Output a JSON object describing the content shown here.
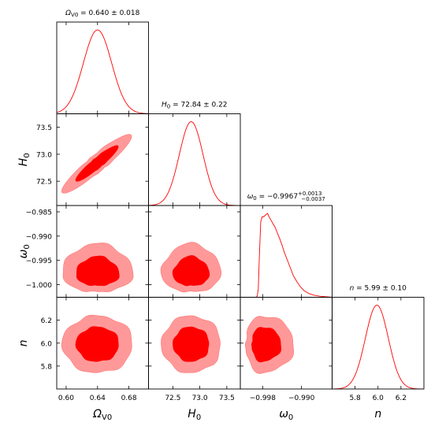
{
  "chart_data": {
    "type": "corner-plot",
    "parameters": [
      {
        "key": "omega_v0",
        "symbol": "Ω",
        "sub": "V0",
        "range": [
          0.588,
          0.705
        ],
        "ticks": [
          0.6,
          0.64,
          0.68
        ],
        "tick_labels": [
          "0.60",
          "0.64",
          "0.68"
        ],
        "mean": 0.64,
        "sigma": 0.018,
        "title": "= 0.640 ± 0.018"
      },
      {
        "key": "h0",
        "symbol": "H",
        "sub": "0",
        "range": [
          72.05,
          73.75
        ],
        "ticks": [
          72.5,
          73.0,
          73.5
        ],
        "tick_labels": [
          "72.5",
          "73.0",
          "73.5"
        ],
        "mean": 72.84,
        "sigma": 0.22,
        "title": "= 72.84 ± 0.22"
      },
      {
        "key": "w0",
        "symbol": "ω",
        "sub": "0",
        "range": [
          -1.0026,
          -0.9837
        ],
        "ticks": [
          -1.0,
          -0.995,
          -0.99,
          -0.985
        ],
        "tick_labels": [
          "−1.000",
          "−0.995",
          "−0.990",
          "−0.985"
        ],
        "x_ticks": [
          -0.998,
          -0.99
        ],
        "x_tick_labels": [
          "−0.998",
          "−0.990"
        ],
        "title_main": "= −0.9967",
        "title_sup": "+0.0013",
        "title_sub": "−0.0037"
      },
      {
        "key": "n",
        "symbol": "n",
        "sub": "",
        "range": [
          5.6,
          6.4
        ],
        "ticks": [
          5.8,
          6.0,
          6.2
        ],
        "tick_labels": [
          "5.8",
          "6.0",
          "6.2"
        ],
        "mean": 5.99,
        "sigma": 0.1,
        "title": "= 5.99 ± 0.10"
      }
    ],
    "w0_marginal": {
      "x": [
        -1.0026,
        -0.9993,
        -0.9991,
        -0.9989,
        -0.9987,
        -0.9984,
        -0.9981,
        -0.9978,
        -0.9974,
        -0.997,
        -0.9966,
        -0.9962,
        -0.9958,
        -0.9954,
        -0.995,
        -0.9945,
        -0.994,
        -0.9935,
        -0.9929,
        -0.9923,
        -0.9917,
        -0.991,
        -0.9903,
        -0.9895,
        -0.9885,
        -0.9875,
        -0.9862,
        -0.9848,
        -0.9837
      ],
      "y": [
        0.0,
        0.0,
        0.02,
        0.1,
        0.45,
        0.9,
        0.96,
        0.96,
        0.98,
        1.0,
        0.95,
        0.91,
        0.87,
        0.83,
        0.77,
        0.7,
        0.62,
        0.53,
        0.44,
        0.35,
        0.26,
        0.19,
        0.13,
        0.08,
        0.045,
        0.025,
        0.012,
        0.005,
        0.0
      ]
    },
    "contour_colors": {
      "inner": "#ff0000",
      "outer": "#ff9999",
      "line": "#ff0000"
    }
  }
}
